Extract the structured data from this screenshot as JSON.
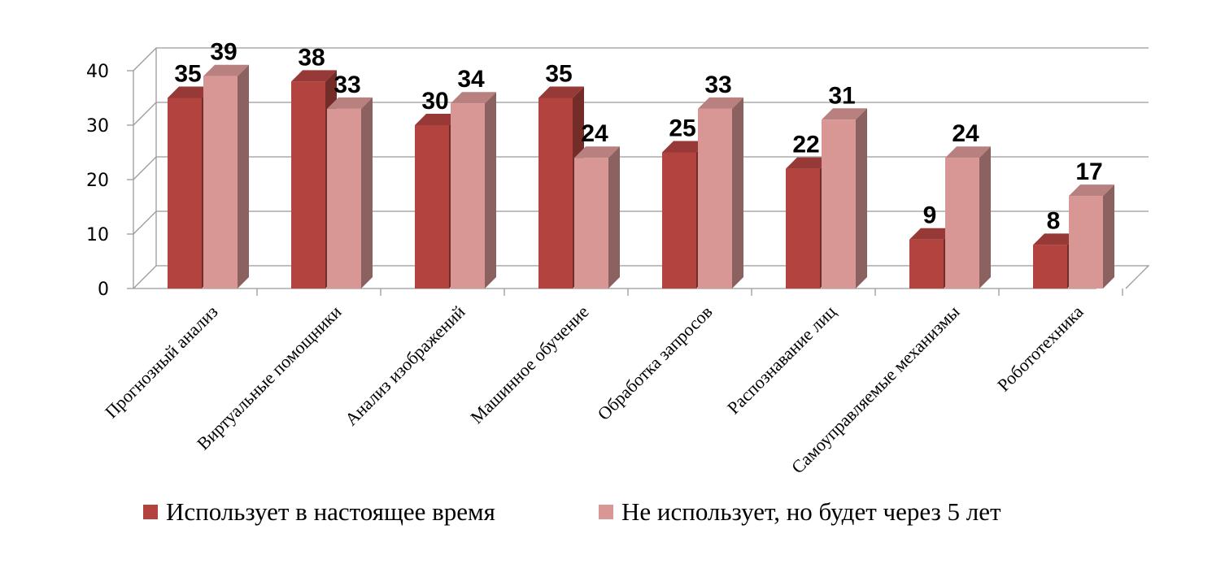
{
  "chart_data": {
    "type": "bar",
    "categories": [
      "Прогнозный анализ",
      "Виртуальные помощники",
      "Анализ изображений",
      "Машинное обучение",
      "Обработка запросов",
      "Распознавание лиц",
      "Самоуправляемые механизмы",
      "Робототехника"
    ],
    "series": [
      {
        "name": "Использует в настоящее время",
        "values": [
          35,
          38,
          30,
          35,
          25,
          22,
          9,
          8
        ],
        "color": "#b2433f"
      },
      {
        "name": "Не использует, но будет через 5 лет",
        "values": [
          39,
          33,
          34,
          24,
          33,
          31,
          24,
          17
        ],
        "color": "#d89694"
      }
    ],
    "ylim": [
      0,
      40
    ],
    "yticks": [
      0,
      10,
      20,
      30,
      40
    ],
    "grid": true,
    "legend_position": "bottom",
    "three_d": true
  }
}
